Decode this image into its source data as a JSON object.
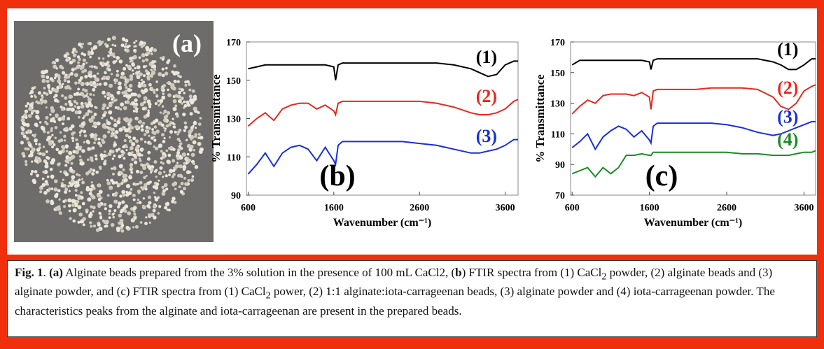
{
  "photo": {
    "label": "(a)"
  },
  "chart_data": [
    {
      "type": "line",
      "panel_label": "(b)",
      "ylabel": "% Transmittance",
      "xlabel": "Wavenumber (cm⁻¹)",
      "xlim": [
        580,
        3750
      ],
      "ylim": [
        90,
        170
      ],
      "xticks": [
        600,
        1600,
        2600,
        3600
      ],
      "yticks": [
        90,
        110,
        130,
        150,
        170
      ],
      "x": [
        600,
        700,
        800,
        900,
        1000,
        1100,
        1200,
        1300,
        1400,
        1500,
        1600,
        1620,
        1650,
        1700,
        1800,
        2000,
        2200,
        2400,
        2600,
        2800,
        3000,
        3200,
        3300,
        3400,
        3500,
        3600,
        3700,
        3750
      ],
      "series": [
        {
          "name": "(1)",
          "color": "#000000",
          "values": [
            156,
            157,
            158,
            158,
            158,
            158,
            158,
            158,
            158,
            158,
            157,
            150,
            158,
            159,
            159,
            159,
            159,
            159,
            159,
            159,
            158,
            156,
            154,
            152,
            153,
            158,
            160,
            160
          ]
        },
        {
          "name": "(2)",
          "color": "#e8281e",
          "values": [
            126,
            130,
            133,
            129,
            135,
            137,
            138,
            138,
            135,
            137,
            134,
            132,
            138,
            139,
            139,
            139,
            139,
            139,
            139,
            138,
            136,
            133,
            132,
            132,
            133,
            135,
            139,
            140
          ]
        },
        {
          "name": "(3)",
          "color": "#1a2fd8",
          "values": [
            101,
            106,
            112,
            105,
            112,
            115,
            116,
            114,
            108,
            115,
            108,
            106,
            116,
            118,
            118,
            118,
            118,
            118,
            117,
            116,
            114,
            112,
            112,
            113,
            114,
            116,
            119,
            119
          ]
        }
      ]
    },
    {
      "type": "line",
      "panel_label": "(c)",
      "ylabel": "% Transmittance",
      "xlabel": "Wavenumber (cm⁻¹)",
      "xlim": [
        580,
        3750
      ],
      "ylim": [
        70,
        170
      ],
      "xticks": [
        600,
        1600,
        2600,
        3600
      ],
      "yticks": [
        70,
        90,
        110,
        130,
        150,
        170
      ],
      "x": [
        600,
        700,
        800,
        900,
        1000,
        1100,
        1200,
        1300,
        1400,
        1500,
        1600,
        1620,
        1650,
        1700,
        1800,
        2000,
        2200,
        2400,
        2600,
        2800,
        3000,
        3200,
        3300,
        3400,
        3500,
        3600,
        3700,
        3750
      ],
      "series": [
        {
          "name": "(1)",
          "color": "#000000",
          "values": [
            155,
            158,
            158,
            158,
            158,
            158,
            158,
            158,
            158,
            158,
            157,
            152,
            158,
            159,
            159,
            159,
            159,
            159,
            159,
            159,
            159,
            157,
            155,
            152,
            152,
            155,
            159,
            159
          ]
        },
        {
          "name": "(2)",
          "color": "#e8281e",
          "values": [
            123,
            128,
            132,
            130,
            135,
            136,
            136,
            136,
            135,
            137,
            134,
            126,
            138,
            139,
            139,
            139,
            139,
            140,
            140,
            140,
            139,
            134,
            128,
            126,
            130,
            138,
            141,
            142
          ]
        },
        {
          "name": "(3)",
          "color": "#1a2fd8",
          "values": [
            101,
            105,
            110,
            100,
            108,
            112,
            115,
            113,
            108,
            112,
            106,
            104,
            115,
            117,
            117,
            117,
            117,
            117,
            116,
            114,
            111,
            109,
            110,
            112,
            114,
            116,
            118,
            118
          ]
        },
        {
          "name": "(4)",
          "color": "#1d8a25",
          "values": [
            84,
            86,
            88,
            82,
            88,
            84,
            88,
            96,
            96,
            97,
            96,
            96,
            98,
            98,
            98,
            98,
            98,
            98,
            98,
            97,
            97,
            96,
            96,
            96,
            97,
            98,
            98,
            99
          ]
        }
      ]
    }
  ],
  "caption": [
    "Fig. 1",
    ". ",
    "(a)",
    " Alginate beads prepared from the 3% solution in the presence of 100 mL CaCl2,  (",
    "b",
    ") FTIR spectra from (1) CaCl",
    "2",
    " powder, (2) alginate beads and (3) alginate powder, and (c) FTIR spectra from (1) CaCl",
    "2",
    " power, (2) 1:1 alginate:iota-carrageenan beads, (3) alginate powder and (4) iota-carrageenan powder. The characteristics peaks from the alginate and iota-carrageenan are present in the prepared beads."
  ]
}
